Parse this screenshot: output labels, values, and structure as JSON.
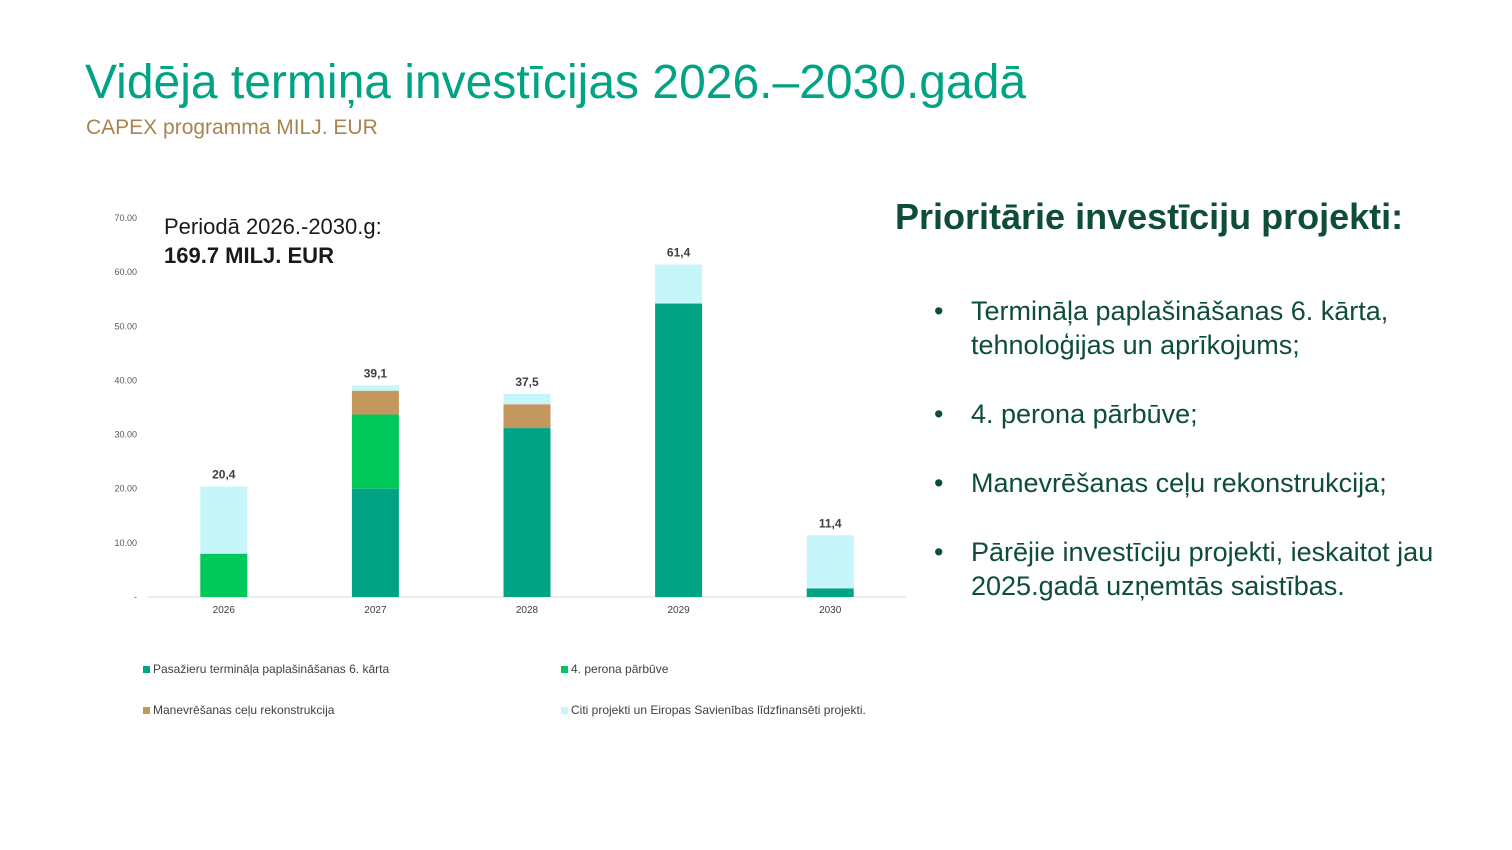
{
  "slide": {
    "title": "Vidēja termiņa investīcijas 2026.–2030.gadā",
    "subtitle": "CAPEX programma MILJ. EUR"
  },
  "period": {
    "label": "Periodā 2026.-2030.g:",
    "total": "169.7 MILJ. EUR"
  },
  "right_panel": {
    "title": "Prioritārie investīciju projekti:",
    "bullet_glyph": "•",
    "bullets": [
      "Termināļa paplašināšanas 6. kārta, tehnoloģijas un aprīkojums;",
      "4. perona pārbūve;",
      "Manevrēšanas ceļu rekonstrukcija;",
      "Pārējie investīciju projekti, ieskaitot jau 2025.gadā uzņemtās saistības."
    ]
  },
  "colors": {
    "title": "#00A383",
    "subtitle": "#A8844F",
    "dark_green": "#0E4D38",
    "terminal": "#00A383",
    "perona": "#00C85A",
    "manevr": "#C4975E",
    "citi": "#C6F5FA"
  },
  "chart_data": {
    "type": "bar",
    "stacked": true,
    "categories": [
      "2026",
      "2027",
      "2028",
      "2029",
      "2030"
    ],
    "series": [
      {
        "name": "Pasažieru termināļa paplašināšanas 6. kārta",
        "color": "#00A383",
        "values": [
          0,
          20.0,
          31.2,
          54.2,
          1.6
        ]
      },
      {
        "name": "4. perona pārbūve",
        "color": "#00C85A",
        "values": [
          8.0,
          13.7,
          0,
          0,
          0
        ]
      },
      {
        "name": "Manevrēšanas ceļu rekonstrukcija",
        "color": "#C4975E",
        "values": [
          0,
          4.4,
          4.4,
          0,
          0
        ]
      },
      {
        "name": "Citi projekti un Eiropas Savienības līdzfinansēti projekti.",
        "color": "#C6F5FA",
        "values": [
          12.4,
          1.0,
          1.9,
          7.2,
          9.8
        ]
      }
    ],
    "totals": [
      "20,4",
      "39,1",
      "37,5",
      "61,4",
      "11,4"
    ],
    "ylim": [
      0,
      70
    ],
    "yticks": [
      {
        "value": 0,
        "label": "-"
      },
      {
        "value": 10,
        "label": "10.00"
      },
      {
        "value": 20,
        "label": "20.00"
      },
      {
        "value": 30,
        "label": "30.00"
      },
      {
        "value": 40,
        "label": "40.00"
      },
      {
        "value": 50,
        "label": "50.00"
      },
      {
        "value": 60,
        "label": "60.00"
      },
      {
        "value": 70,
        "label": "70.00"
      }
    ],
    "grid": false,
    "legend_position": "bottom"
  }
}
